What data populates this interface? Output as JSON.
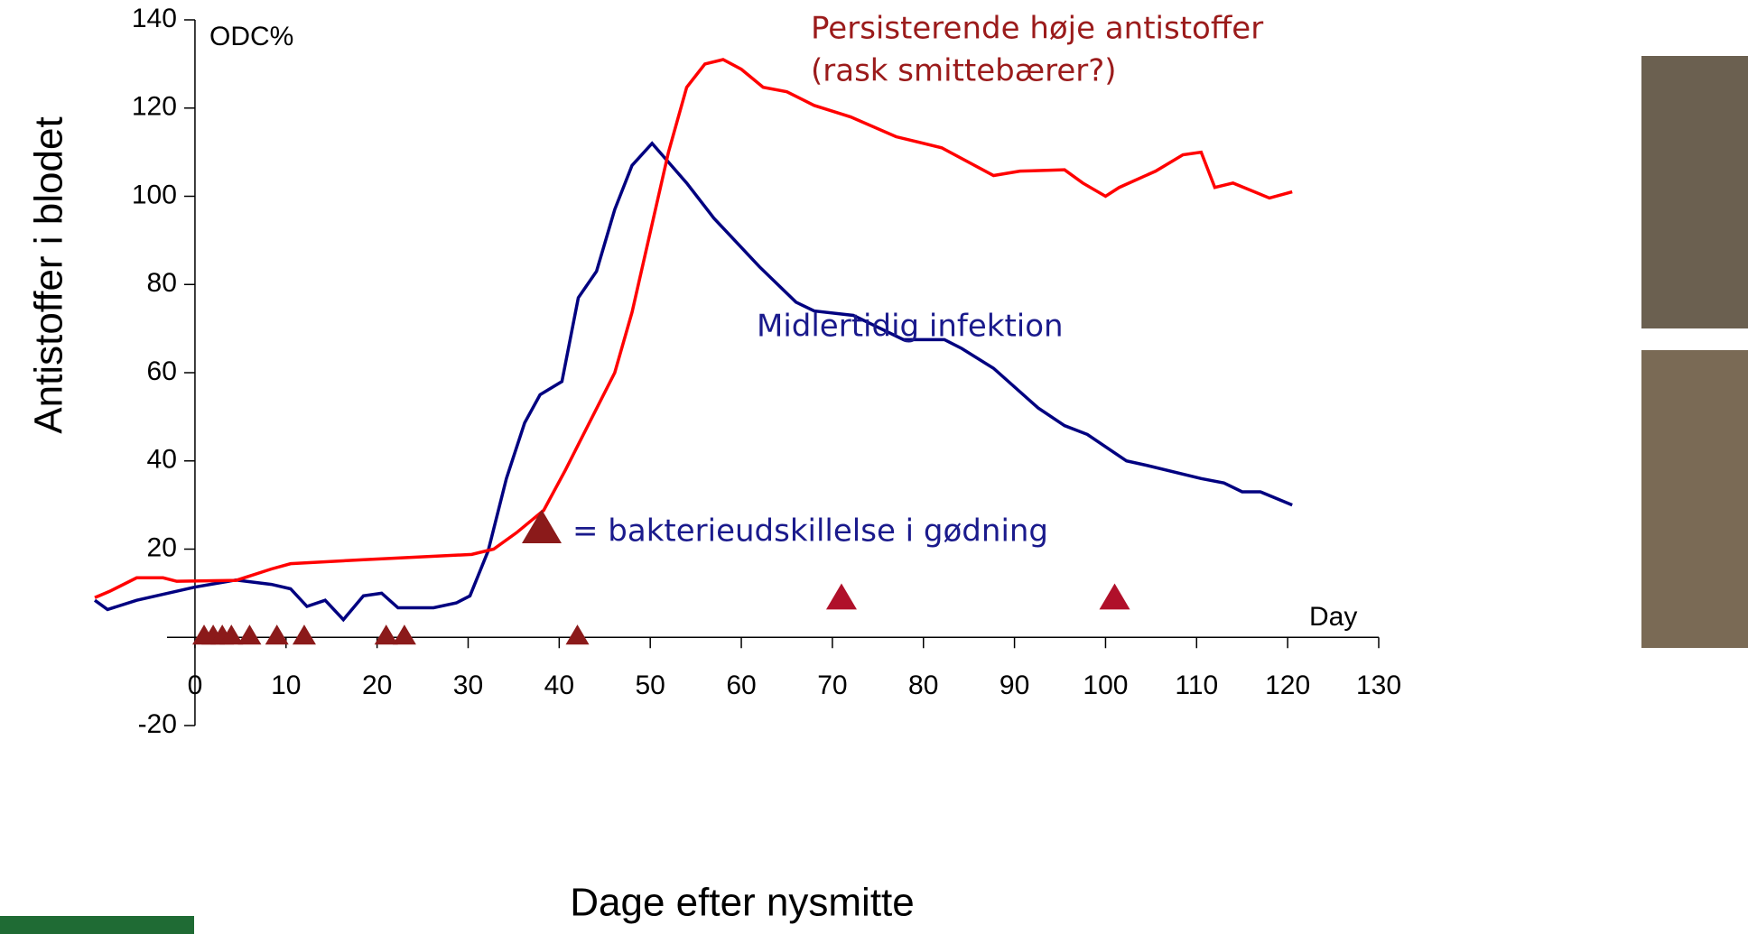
{
  "chart_data": {
    "type": "line",
    "y_label": "Antistoffer i blodet",
    "x_label": "Dage efter nysmitte",
    "unit_label": "ODC%",
    "x_unit_label": "Day",
    "annotations": [
      "Persisterende høje antistoffer",
      "(rask smittebærer?)",
      "Midlertidig infektion",
      "= bakterieudskillelse i gødning"
    ],
    "xlim": [
      -11,
      130
    ],
    "ylim": [
      -20,
      140
    ],
    "xticks": [
      0,
      10,
      20,
      30,
      40,
      50,
      60,
      70,
      80,
      90,
      100,
      110,
      120,
      130
    ],
    "yticks": [
      -20,
      20,
      40,
      60,
      80,
      100,
      120,
      140
    ],
    "series": [
      {
        "color": "#000080",
        "x": [
          -11,
          -9.6,
          -6.4,
          0,
          4.5,
          8.4,
          10.5,
          12.3,
          14.3,
          16.3,
          18.5,
          20.5,
          22.3,
          26.2,
          28.7,
          30.2,
          32.2,
          34.2,
          36.2,
          37.9,
          40.3,
          42.1,
          44.1,
          46.1,
          48,
          50.2,
          54,
          57,
          62,
          66,
          68,
          72.3,
          77.8,
          82.3,
          84.2,
          87.7,
          92.6,
          95.5,
          98,
          102.3,
          104.5,
          110.5,
          113,
          115,
          117,
          120.5
        ],
        "values": [
          8.4,
          6.3,
          8.4,
          11.4,
          13,
          12,
          11,
          7,
          8.4,
          4,
          9.4,
          10,
          6.7,
          6.7,
          7.8,
          9.4,
          19.6,
          36,
          48.6,
          55,
          58,
          77,
          83,
          97,
          107,
          112,
          103,
          95,
          84,
          76,
          74,
          73,
          67.5,
          67.5,
          65.5,
          61,
          52,
          48,
          46,
          40,
          39,
          36,
          35,
          33,
          33,
          30
        ]
      },
      {
        "color": "#ff0000",
        "x": [
          -11,
          -9.4,
          -6.4,
          -3.5,
          -2,
          4.5,
          8.4,
          10.5,
          18.5,
          30.4,
          32.8,
          35.3,
          38.3,
          40.7,
          46.1,
          48,
          52,
          54,
          56,
          58,
          60,
          62.4,
          65,
          68,
          72,
          77,
          82,
          87.7,
          90.6,
          95.5,
          97.5,
          100,
          101.5,
          105.5,
          108.5,
          110.5,
          112,
          114,
          118,
          120.5
        ],
        "values": [
          9,
          10.4,
          13.5,
          13.5,
          12.7,
          12.9,
          15.5,
          16.7,
          17.6,
          18.8,
          20,
          23.7,
          28.8,
          38,
          60,
          73.7,
          110,
          124.7,
          130,
          131,
          128.8,
          124.7,
          123.7,
          120.6,
          118,
          113.5,
          111,
          104.7,
          105.7,
          106,
          103,
          100,
          102,
          105.7,
          109.4,
          110,
          102,
          103,
          99.6,
          101
        ]
      }
    ],
    "markers": [
      {
        "color": "#8b1a1a",
        "x": [
          1,
          2,
          3,
          4,
          6,
          9,
          12,
          21,
          23,
          42
        ],
        "y": [
          0,
          0,
          0,
          0,
          0,
          0,
          0,
          0,
          0,
          0
        ]
      },
      {
        "color": "#b0102a",
        "x": [
          71,
          101
        ],
        "y": [
          10,
          10
        ]
      }
    ]
  }
}
